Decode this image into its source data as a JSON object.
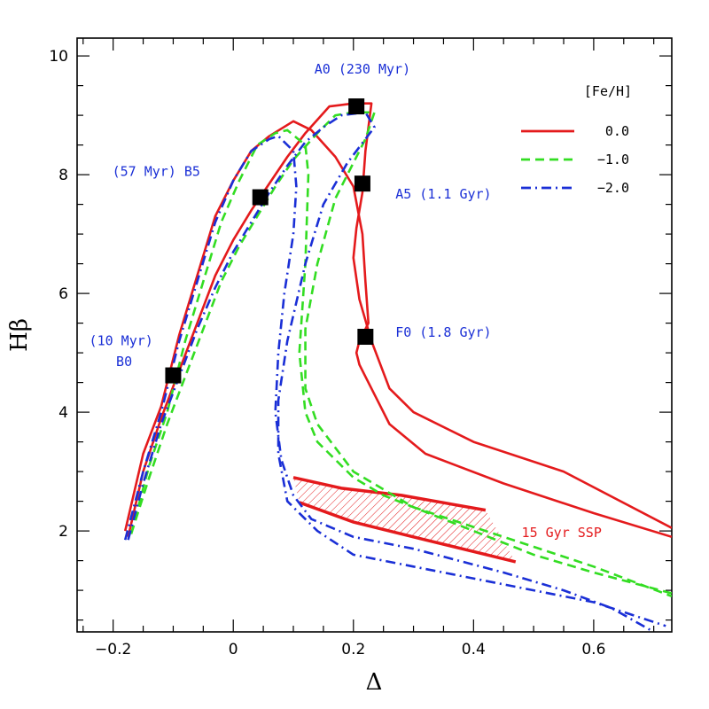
{
  "chart_data": {
    "type": "line",
    "xlabel": "Δ",
    "ylabel": "Hβ",
    "xlim": [
      -0.26,
      0.73
    ],
    "ylim": [
      0.3,
      10.3
    ],
    "xticks": [
      -0.2,
      0,
      0.2,
      0.4,
      0.6
    ],
    "xtick_labels": [
      "−0.2",
      "0",
      "0.2",
      "0.4",
      "0.6"
    ],
    "yticks": [
      2,
      4,
      6,
      8,
      10
    ],
    "ytick_labels": [
      "2",
      "4",
      "6",
      "8",
      "10"
    ],
    "grid": false,
    "legend": {
      "title": "[Fe/H]",
      "placement": "top-right",
      "entries": [
        {
          "label": "0.0",
          "color": "#e41a1c",
          "dash": "solid"
        },
        {
          "label": "−1.0",
          "color": "#33dd22",
          "dash": "dashed"
        },
        {
          "label": "−2.0",
          "color": "#1a2fd6",
          "dash": "dashdot"
        }
      ]
    },
    "series": [
      {
        "color": "#e41a1c",
        "dash": "solid",
        "x": [
          -0.18,
          -0.15,
          -0.12,
          -0.09,
          -0.06,
          -0.03,
          0.0,
          0.03,
          0.06,
          0.1,
          0.13,
          0.17,
          0.2,
          0.215,
          0.22,
          0.225,
          0.21,
          0.205,
          0.21,
          0.22,
          0.24,
          0.26,
          0.32,
          0.45,
          0.6,
          0.73
        ],
        "y": [
          2.0,
          3.3,
          4.1,
          5.3,
          6.3,
          7.3,
          7.9,
          8.4,
          8.65,
          8.9,
          8.75,
          8.3,
          7.8,
          7.0,
          6.2,
          5.5,
          5.2,
          5.0,
          4.8,
          4.6,
          4.2,
          3.8,
          3.3,
          2.8,
          2.3,
          1.9
        ]
      },
      {
        "color": "#e41a1c",
        "dash": "solid",
        "x": [
          -0.175,
          -0.15,
          -0.12,
          -0.09,
          -0.06,
          -0.03,
          0.0,
          0.03,
          0.06,
          0.09,
          0.12,
          0.16,
          0.2,
          0.23,
          0.225,
          0.22,
          0.215,
          0.205,
          0.2,
          0.21,
          0.23,
          0.26,
          0.3,
          0.4,
          0.55,
          0.73
        ],
        "y": [
          1.9,
          3.0,
          3.9,
          4.7,
          5.5,
          6.3,
          6.9,
          7.4,
          7.85,
          8.3,
          8.7,
          9.15,
          9.2,
          9.2,
          8.8,
          8.4,
          7.7,
          7.1,
          6.6,
          5.9,
          5.2,
          4.4,
          4.0,
          3.5,
          3.0,
          2.05
        ]
      },
      {
        "color": "#33dd22",
        "dash": "dashed",
        "x": [
          -0.17,
          -0.14,
          -0.11,
          -0.08,
          -0.05,
          -0.02,
          0.01,
          0.04,
          0.07,
          0.09,
          0.12,
          0.125,
          0.12,
          0.11,
          0.12,
          0.14,
          0.17,
          0.2,
          0.25,
          0.35,
          0.5,
          0.6,
          0.73
        ],
        "y": [
          1.95,
          3.1,
          4.0,
          5.2,
          6.2,
          7.2,
          7.9,
          8.5,
          8.7,
          8.75,
          8.5,
          8.0,
          6.5,
          5.0,
          4.0,
          3.5,
          3.2,
          2.9,
          2.6,
          2.2,
          1.6,
          1.3,
          0.95
        ]
      },
      {
        "color": "#33dd22",
        "dash": "dashed",
        "x": [
          -0.17,
          -0.14,
          -0.11,
          -0.08,
          -0.05,
          -0.02,
          0.01,
          0.04,
          0.07,
          0.1,
          0.14,
          0.17,
          0.2,
          0.235,
          0.22,
          0.2,
          0.17,
          0.14,
          0.12,
          0.12,
          0.14,
          0.17,
          0.2,
          0.3,
          0.45,
          0.6,
          0.73
        ],
        "y": [
          1.95,
          2.9,
          3.8,
          4.6,
          5.4,
          6.2,
          6.8,
          7.3,
          7.8,
          8.25,
          8.7,
          9.0,
          9.05,
          9.05,
          8.6,
          8.2,
          7.6,
          6.5,
          5.4,
          4.4,
          3.8,
          3.4,
          3.0,
          2.4,
          1.9,
          1.4,
          0.9
        ]
      },
      {
        "color": "#1a2fd6",
        "dash": "dashdot",
        "x": [
          -0.18,
          -0.15,
          -0.12,
          -0.09,
          -0.06,
          -0.03,
          0.0,
          0.03,
          0.06,
          0.075,
          0.1,
          0.105,
          0.1,
          0.085,
          0.075,
          0.07,
          0.08,
          0.1,
          0.13,
          0.2,
          0.3,
          0.45,
          0.55,
          0.63,
          0.7
        ],
        "y": [
          1.85,
          3.0,
          4.0,
          5.2,
          6.2,
          7.2,
          7.9,
          8.4,
          8.6,
          8.65,
          8.4,
          7.8,
          7.0,
          6.0,
          5.0,
          4.0,
          3.2,
          2.6,
          2.2,
          1.9,
          1.7,
          1.3,
          1.0,
          0.7,
          0.3
        ]
      },
      {
        "color": "#1a2fd6",
        "dash": "dashdot",
        "x": [
          -0.175,
          -0.15,
          -0.12,
          -0.09,
          -0.06,
          -0.03,
          0.0,
          0.03,
          0.06,
          0.09,
          0.12,
          0.15,
          0.18,
          0.22,
          0.235,
          0.22,
          0.19,
          0.15,
          0.12,
          0.09,
          0.075,
          0.075,
          0.09,
          0.14,
          0.2,
          0.3,
          0.45,
          0.6,
          0.72
        ],
        "y": [
          1.85,
          2.8,
          3.8,
          4.6,
          5.4,
          6.1,
          6.7,
          7.2,
          7.7,
          8.15,
          8.55,
          8.8,
          9.0,
          9.05,
          8.8,
          8.6,
          8.2,
          7.5,
          6.5,
          5.2,
          4.2,
          3.3,
          2.5,
          2.0,
          1.6,
          1.4,
          1.1,
          0.8,
          0.4
        ]
      }
    ],
    "ssp_region": {
      "color": "#e41a1c",
      "upper": {
        "x": [
          0.1,
          0.18,
          0.28,
          0.42
        ],
        "y": [
          2.9,
          2.72,
          2.6,
          2.35
        ]
      },
      "lower": {
        "x": [
          0.11,
          0.2,
          0.32,
          0.47
        ],
        "y": [
          2.48,
          2.15,
          1.85,
          1.48
        ]
      },
      "label": "15 Gyr SSP",
      "label_pos": [
        0.48,
        1.9
      ]
    },
    "markers": [
      {
        "x": -0.1,
        "y": 4.62
      },
      {
        "x": 0.045,
        "y": 7.62
      },
      {
        "x": 0.205,
        "y": 9.15
      },
      {
        "x": 0.215,
        "y": 7.85
      },
      {
        "x": 0.22,
        "y": 5.27
      }
    ],
    "annotations": [
      {
        "text": "A0 (230 Myr)",
        "x": 0.215,
        "y": 9.7,
        "color": "#1a2fd6",
        "anchor": "middle"
      },
      {
        "text": "(57 Myr) B5",
        "x": -0.055,
        "y": 7.98,
        "color": "#1a2fd6",
        "anchor": "end"
      },
      {
        "text": "A5 (1.1 Gyr)",
        "x": 0.27,
        "y": 7.6,
        "color": "#1a2fd6",
        "anchor": "start"
      },
      {
        "text": "F0 (1.8 Gyr)",
        "x": 0.27,
        "y": 5.27,
        "color": "#1a2fd6",
        "anchor": "start"
      },
      {
        "text": "(10 Myr)",
        "x": -0.24,
        "y": 5.13,
        "color": "#1a2fd6",
        "anchor": "start"
      },
      {
        "text": "B0",
        "x": -0.195,
        "y": 4.78,
        "color": "#1a2fd6",
        "anchor": "start"
      }
    ]
  }
}
